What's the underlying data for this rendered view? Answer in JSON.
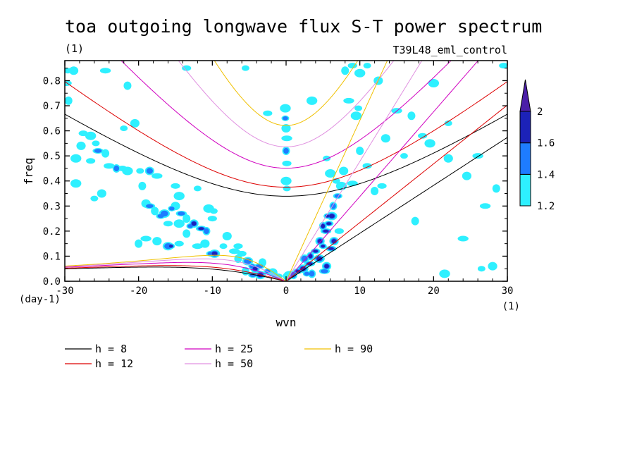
{
  "chart_data": {
    "type": "heatmap",
    "title": "toa outgoing longwave flux S-T power spectrum",
    "subtitle_left": "(1)",
    "subtitle_right": "T39L48_eml_control",
    "xlabel": "wvn",
    "ylabel": "freq",
    "x_unit": "(1)",
    "y_unit": "(day-1)",
    "xlim": [
      -30,
      30
    ],
    "ylim": [
      0,
      0.88
    ],
    "x_ticks": [
      -30,
      -20,
      -10,
      0,
      10,
      20,
      30
    ],
    "x_tick_labels": [
      "-30",
      "-20",
      "-10",
      "0",
      "10",
      "20",
      "30"
    ],
    "y_ticks": [
      0,
      0.1,
      0.2,
      0.3,
      0.4,
      0.5,
      0.6,
      0.7,
      0.8
    ],
    "y_tick_labels": [
      "0.0",
      "0.1",
      "0.2",
      "0.3",
      "0.4",
      "0.5",
      "0.6",
      "0.7",
      "0.8"
    ],
    "colorbar": {
      "levels": [
        1.2,
        1.4,
        1.6,
        2
      ],
      "labels": [
        "1.2",
        "1.4",
        "1.6",
        "2"
      ],
      "colors": [
        "#2ef0ff",
        "#1e7cff",
        "#1c22b8",
        "#4b1ea8"
      ]
    },
    "dispersion_curves": [
      {
        "name": "h =  8",
        "h": 8,
        "color": "#000000"
      },
      {
        "name": "h = 12",
        "h": 12,
        "color": "#dd0000"
      },
      {
        "name": "h = 25",
        "h": 25,
        "color": "#d000c0"
      },
      {
        "name": "h = 50",
        "h": 50,
        "color": "#e090e0"
      },
      {
        "name": "h = 90",
        "h": 90,
        "color": "#f0c000"
      }
    ],
    "power_regions": [
      {
        "x": -29.6,
        "y": 0.84,
        "level": 1.2
      },
      {
        "x": -28.8,
        "y": 0.84,
        "level": 1.2
      },
      {
        "x": -29.8,
        "y": 0.79,
        "level": 1.2
      },
      {
        "x": -29.5,
        "y": 0.72,
        "level": 1.2
      },
      {
        "x": -27.5,
        "y": 0.59,
        "level": 1.2
      },
      {
        "x": -26.5,
        "y": 0.58,
        "level": 1.2
      },
      {
        "x": -25.8,
        "y": 0.55,
        "level": 1.2
      },
      {
        "x": -27.8,
        "y": 0.54,
        "level": 1.2
      },
      {
        "x": -25.5,
        "y": 0.52,
        "level": 1.4
      },
      {
        "x": -24.5,
        "y": 0.51,
        "level": 1.2
      },
      {
        "x": -26.5,
        "y": 0.48,
        "level": 1.2
      },
      {
        "x": -28.5,
        "y": 0.49,
        "level": 1.2
      },
      {
        "x": -22,
        "y": 0.61,
        "level": 1.2
      },
      {
        "x": -20.5,
        "y": 0.63,
        "level": 1.2
      },
      {
        "x": -24.5,
        "y": 0.84,
        "level": 1.2
      },
      {
        "x": -21.5,
        "y": 0.78,
        "level": 1.2
      },
      {
        "x": -13.5,
        "y": 0.85,
        "level": 1.2
      },
      {
        "x": -28.5,
        "y": 0.39,
        "level": 1.2
      },
      {
        "x": -26,
        "y": 0.33,
        "level": 1.2
      },
      {
        "x": -25,
        "y": 0.35,
        "level": 1.2
      },
      {
        "x": -24,
        "y": 0.46,
        "level": 1.2
      },
      {
        "x": -23,
        "y": 0.45,
        "level": 1.4
      },
      {
        "x": -22.2,
        "y": 0.45,
        "level": 1.2
      },
      {
        "x": -21.5,
        "y": 0.44,
        "level": 1.2
      },
      {
        "x": -19.8,
        "y": 0.44,
        "level": 1.2
      },
      {
        "x": -18.5,
        "y": 0.44,
        "level": 1.4
      },
      {
        "x": -17.5,
        "y": 0.42,
        "level": 1.2
      },
      {
        "x": -19.5,
        "y": 0.38,
        "level": 1.2
      },
      {
        "x": -15,
        "y": 0.38,
        "level": 1.2
      },
      {
        "x": -14.5,
        "y": 0.34,
        "level": 1.2
      },
      {
        "x": -12,
        "y": 0.37,
        "level": 1.2
      },
      {
        "x": -19,
        "y": 0.31,
        "level": 1.2
      },
      {
        "x": -18.5,
        "y": 0.3,
        "level": 1.4
      },
      {
        "x": -17.8,
        "y": 0.28,
        "level": 1.2
      },
      {
        "x": -17,
        "y": 0.26,
        "level": 1.4
      },
      {
        "x": -16.5,
        "y": 0.27,
        "level": 1.4
      },
      {
        "x": -15.5,
        "y": 0.29,
        "level": 1.4
      },
      {
        "x": -15,
        "y": 0.3,
        "level": 1.2
      },
      {
        "x": -14.2,
        "y": 0.27,
        "level": 1.4
      },
      {
        "x": -13.5,
        "y": 0.25,
        "level": 1.2
      },
      {
        "x": -16,
        "y": 0.23,
        "level": 1.2
      },
      {
        "x": -14.5,
        "y": 0.23,
        "level": 1.2
      },
      {
        "x": -13,
        "y": 0.22,
        "level": 1.4
      },
      {
        "x": -12.5,
        "y": 0.23,
        "level": 1.6
      },
      {
        "x": -11.5,
        "y": 0.21,
        "level": 1.6
      },
      {
        "x": -10.8,
        "y": 0.2,
        "level": 1.4
      },
      {
        "x": -10,
        "y": 0.25,
        "level": 1.2
      },
      {
        "x": -10.5,
        "y": 0.29,
        "level": 1.2
      },
      {
        "x": -9.8,
        "y": 0.28,
        "level": 1.2
      },
      {
        "x": -11,
        "y": 0.15,
        "level": 1.2
      },
      {
        "x": -12,
        "y": 0.14,
        "level": 1.2
      },
      {
        "x": -13.5,
        "y": 0.19,
        "level": 1.2
      },
      {
        "x": -14.5,
        "y": 0.15,
        "level": 1.2
      },
      {
        "x": -16,
        "y": 0.14,
        "level": 1.4
      },
      {
        "x": -15.6,
        "y": 0.14,
        "level": 1.6
      },
      {
        "x": -17.5,
        "y": 0.16,
        "level": 1.2
      },
      {
        "x": -19,
        "y": 0.17,
        "level": 1.2
      },
      {
        "x": -20,
        "y": 0.15,
        "level": 1.2
      },
      {
        "x": -10.2,
        "y": 0.11,
        "level": 1.4
      },
      {
        "x": -9.7,
        "y": 0.11,
        "level": 1.6
      },
      {
        "x": -8.5,
        "y": 0.14,
        "level": 1.2
      },
      {
        "x": -8,
        "y": 0.18,
        "level": 1.2
      },
      {
        "x": -7,
        "y": 0.12,
        "level": 1.2
      },
      {
        "x": -6.5,
        "y": 0.09,
        "level": 1.2
      },
      {
        "x": -6,
        "y": 0.11,
        "level": 1.2
      },
      {
        "x": -5.2,
        "y": 0.08,
        "level": 1.4
      },
      {
        "x": -4.6,
        "y": 0.06,
        "level": 1.4
      },
      {
        "x": -4.2,
        "y": 0.05,
        "level": 1.6
      },
      {
        "x": -3.6,
        "y": 0.06,
        "level": 1.4
      },
      {
        "x": -5.5,
        "y": 0.04,
        "level": 1.2
      },
      {
        "x": -4.5,
        "y": 0.025,
        "level": 1.4
      },
      {
        "x": -3.5,
        "y": 0.025,
        "level": 1.6
      },
      {
        "x": -2.5,
        "y": 0.04,
        "level": 1.4
      },
      {
        "x": -1.8,
        "y": 0.035,
        "level": 1.2
      },
      {
        "x": -1.2,
        "y": 0.02,
        "level": 1.2
      },
      {
        "x": -3.2,
        "y": 0.075,
        "level": 1.2
      },
      {
        "x": -6.5,
        "y": 0.14,
        "level": 1.2
      },
      {
        "x": -0.1,
        "y": 0.69,
        "level": 1.2
      },
      {
        "x": -0.1,
        "y": 0.65,
        "level": 1.4
      },
      {
        "x": 0,
        "y": 0.61,
        "level": 1.2
      },
      {
        "x": 0.1,
        "y": 0.57,
        "level": 1.2
      },
      {
        "x": 0,
        "y": 0.52,
        "level": 1.4
      },
      {
        "x": 0.1,
        "y": 0.47,
        "level": 1.2
      },
      {
        "x": 0,
        "y": 0.4,
        "level": 1.2
      },
      {
        "x": 0.1,
        "y": 0.37,
        "level": 1.2
      },
      {
        "x": 0.2,
        "y": 0.02,
        "level": 1.2
      },
      {
        "x": 0.5,
        "y": 0.03,
        "level": 1.2
      },
      {
        "x": 1,
        "y": 0.025,
        "level": 1.4
      },
      {
        "x": 1.6,
        "y": 0.04,
        "level": 1.6
      },
      {
        "x": 2.3,
        "y": 0.05,
        "level": 1.6
      },
      {
        "x": 2.8,
        "y": 0.03,
        "level": 1.4
      },
      {
        "x": 2.5,
        "y": 0.09,
        "level": 1.4
      },
      {
        "x": 3.2,
        "y": 0.07,
        "level": 1.6
      },
      {
        "x": 3.3,
        "y": 0.1,
        "level": 1.6
      },
      {
        "x": 4,
        "y": 0.12,
        "level": 1.6
      },
      {
        "x": 4.5,
        "y": 0.09,
        "level": 1.6
      },
      {
        "x": 5,
        "y": 0.14,
        "level": 1.6
      },
      {
        "x": 4.6,
        "y": 0.16,
        "level": 1.6
      },
      {
        "x": 5.4,
        "y": 0.2,
        "level": 1.6
      },
      {
        "x": 5,
        "y": 0.22,
        "level": 1.6
      },
      {
        "x": 5.8,
        "y": 0.23,
        "level": 1.6
      },
      {
        "x": 6.2,
        "y": 0.26,
        "level": 1.6
      },
      {
        "x": 5.6,
        "y": 0.26,
        "level": 1.6
      },
      {
        "x": 6.5,
        "y": 0.16,
        "level": 1.6
      },
      {
        "x": 6.1,
        "y": 0.13,
        "level": 1.6
      },
      {
        "x": 6.4,
        "y": 0.3,
        "level": 1.4
      },
      {
        "x": 7,
        "y": 0.34,
        "level": 1.4
      },
      {
        "x": 7.5,
        "y": 0.38,
        "level": 1.2
      },
      {
        "x": 6.8,
        "y": 0.4,
        "level": 1.2
      },
      {
        "x": 5.5,
        "y": 0.06,
        "level": 1.6
      },
      {
        "x": 5.2,
        "y": 0.04,
        "level": 1.4
      },
      {
        "x": 3.5,
        "y": 0.03,
        "level": 1.4
      },
      {
        "x": 7.2,
        "y": 0.2,
        "level": 1.2
      },
      {
        "x": 6,
        "y": 0.43,
        "level": 1.2
      },
      {
        "x": 5.5,
        "y": 0.49,
        "level": 1.2
      },
      {
        "x": 7.8,
        "y": 0.44,
        "level": 1.2
      },
      {
        "x": 9,
        "y": 0.39,
        "level": 1.2
      },
      {
        "x": 10,
        "y": 0.52,
        "level": 1.2
      },
      {
        "x": 11,
        "y": 0.46,
        "level": 1.2
      },
      {
        "x": 9.5,
        "y": 0.66,
        "level": 1.2
      },
      {
        "x": 9.8,
        "y": 0.69,
        "level": 1.2
      },
      {
        "x": 13.5,
        "y": 0.57,
        "level": 1.2
      },
      {
        "x": 15,
        "y": 0.68,
        "level": 1.2
      },
      {
        "x": 17,
        "y": 0.66,
        "level": 1.2
      },
      {
        "x": 18.5,
        "y": 0.58,
        "level": 1.2
      },
      {
        "x": 19.5,
        "y": 0.55,
        "level": 1.2
      },
      {
        "x": 16,
        "y": 0.5,
        "level": 1.2
      },
      {
        "x": 22,
        "y": 0.49,
        "level": 1.2
      },
      {
        "x": 26,
        "y": 0.5,
        "level": 1.2
      },
      {
        "x": 8,
        "y": 0.84,
        "level": 1.2
      },
      {
        "x": 9,
        "y": 0.86,
        "level": 1.2
      },
      {
        "x": 10,
        "y": 0.83,
        "level": 1.2
      },
      {
        "x": 11,
        "y": 0.86,
        "level": 1.2
      },
      {
        "x": 12.5,
        "y": 0.8,
        "level": 1.2
      },
      {
        "x": 8.5,
        "y": 0.72,
        "level": 1.2
      },
      {
        "x": 12,
        "y": 0.36,
        "level": 1.2
      },
      {
        "x": 13,
        "y": 0.38,
        "level": 1.2
      },
      {
        "x": 20,
        "y": 0.79,
        "level": 1.2
      },
      {
        "x": 22,
        "y": 0.63,
        "level": 1.2
      },
      {
        "x": 24.5,
        "y": 0.42,
        "level": 1.2
      },
      {
        "x": 27,
        "y": 0.3,
        "level": 1.2
      },
      {
        "x": 28.5,
        "y": 0.37,
        "level": 1.2
      },
      {
        "x": 29.5,
        "y": 0.86,
        "level": 1.2
      },
      {
        "x": 21.5,
        "y": 0.03,
        "level": 1.2
      },
      {
        "x": 26.5,
        "y": 0.05,
        "level": 1.2
      },
      {
        "x": 28,
        "y": 0.06,
        "level": 1.2
      },
      {
        "x": 24,
        "y": 0.17,
        "level": 1.2
      },
      {
        "x": 17.5,
        "y": 0.24,
        "level": 1.2
      },
      {
        "x": -2.5,
        "y": 0.67,
        "level": 1.2
      },
      {
        "x": 3.5,
        "y": 0.72,
        "level": 1.2
      },
      {
        "x": -5.5,
        "y": 0.85,
        "level": 1.2
      }
    ]
  }
}
